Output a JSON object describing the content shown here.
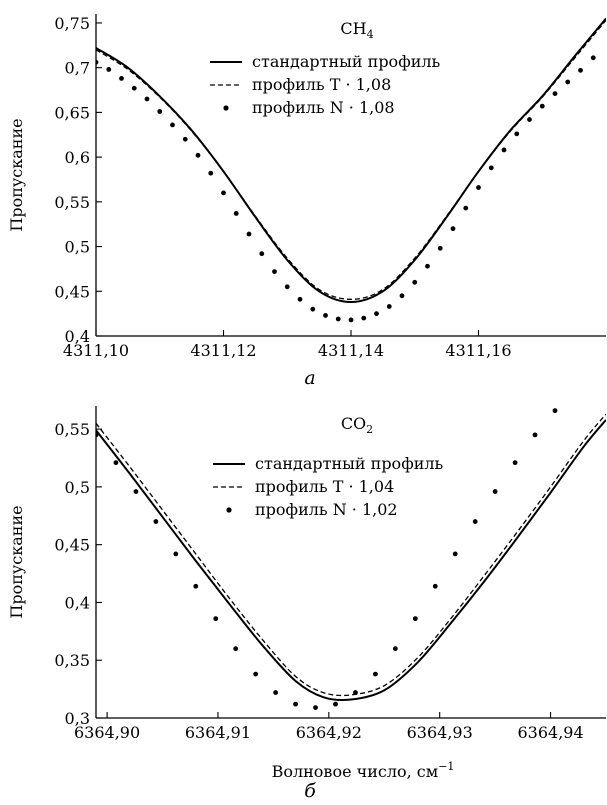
{
  "chart_data": [
    {
      "type": "line",
      "panel_label": "а",
      "title": "CH",
      "title_sub": "4",
      "xlabel": "",
      "ylabel": "Пропускание",
      "xlim": [
        4311.1,
        4311.18
      ],
      "ylim": [
        0.4,
        0.76
      ],
      "x_ticks": [
        4311.1,
        4311.12,
        4311.14,
        4311.16
      ],
      "x_tick_labels": [
        "4311,10",
        "4311,12",
        "4311,14",
        "4311,16"
      ],
      "y_ticks": [
        0.4,
        0.45,
        0.5,
        0.55,
        0.6,
        0.65,
        0.7,
        0.75
      ],
      "y_tick_labels": [
        "0,4",
        "0,45",
        "0,5",
        "0,55",
        "0,6",
        "0,65",
        "0,7",
        "0,75"
      ],
      "legend_position": "top-right",
      "series": [
        {
          "name": "стандартный профиль",
          "style": "solid",
          "x": [
            4311.1,
            4311.105,
            4311.11,
            4311.115,
            4311.12,
            4311.125,
            4311.13,
            4311.135,
            4311.14,
            4311.145,
            4311.15,
            4311.155,
            4311.16,
            4311.165,
            4311.17,
            4311.175,
            4311.18
          ],
          "values": [
            0.722,
            0.7,
            0.668,
            0.63,
            0.584,
            0.533,
            0.485,
            0.45,
            0.438,
            0.45,
            0.485,
            0.533,
            0.584,
            0.63,
            0.668,
            0.712,
            0.755
          ]
        },
        {
          "name": "профиль T · 1,08",
          "style": "dashed",
          "x": [
            4311.1,
            4311.105,
            4311.11,
            4311.115,
            4311.12,
            4311.125,
            4311.13,
            4311.135,
            4311.14,
            4311.145,
            4311.15,
            4311.155,
            4311.16,
            4311.165,
            4311.17,
            4311.175,
            4311.18
          ],
          "values": [
            0.72,
            0.698,
            0.667,
            0.629,
            0.584,
            0.534,
            0.487,
            0.452,
            0.441,
            0.452,
            0.487,
            0.534,
            0.584,
            0.629,
            0.667,
            0.71,
            0.753
          ]
        },
        {
          "name": "профиль N · 1,08",
          "style": "dotted",
          "x": [
            4311.1,
            4311.102,
            4311.104,
            4311.106,
            4311.108,
            4311.11,
            4311.112,
            4311.114,
            4311.116,
            4311.118,
            4311.12,
            4311.122,
            4311.124,
            4311.126,
            4311.128,
            4311.13,
            4311.132,
            4311.134,
            4311.136,
            4311.138,
            4311.14,
            4311.142,
            4311.144,
            4311.146,
            4311.148,
            4311.15,
            4311.152,
            4311.154,
            4311.156,
            4311.158,
            4311.16,
            4311.162,
            4311.164,
            4311.166,
            4311.168,
            4311.17,
            4311.172,
            4311.174,
            4311.176,
            4311.178
          ],
          "values": [
            0.706,
            0.698,
            0.688,
            0.677,
            0.665,
            0.651,
            0.636,
            0.62,
            0.602,
            0.582,
            0.56,
            0.537,
            0.514,
            0.492,
            0.472,
            0.455,
            0.441,
            0.43,
            0.423,
            0.419,
            0.418,
            0.42,
            0.425,
            0.433,
            0.445,
            0.46,
            0.478,
            0.498,
            0.52,
            0.543,
            0.566,
            0.588,
            0.608,
            0.626,
            0.642,
            0.657,
            0.671,
            0.684,
            0.697,
            0.711
          ]
        }
      ]
    },
    {
      "type": "line",
      "panel_label": "б",
      "title": "CO",
      "title_sub": "2",
      "xlabel": "Волновое число, см",
      "xlabel_sup": "−1",
      "ylabel": "Пропускание",
      "xlim": [
        6364.899,
        6364.945
      ],
      "ylim": [
        0.3,
        0.57
      ],
      "x_ticks": [
        6364.9,
        6364.91,
        6364.92,
        6364.93,
        6364.94
      ],
      "x_tick_labels": [
        "6364,90",
        "6364,91",
        "6364,92",
        "6364,93",
        "6364,94"
      ],
      "y_ticks": [
        0.3,
        0.35,
        0.4,
        0.45,
        0.5,
        0.55
      ],
      "y_tick_labels": [
        "0,3",
        "0,35",
        "0,4",
        "0,45",
        "0,5",
        "0,55"
      ],
      "legend_position": "top-center",
      "series": [
        {
          "name": "стандартный профиль",
          "style": "solid",
          "x": [
            6364.899,
            6364.902,
            6364.905,
            6364.908,
            6364.911,
            6364.914,
            6364.917,
            6364.9195,
            6364.922,
            6364.925,
            6364.928,
            6364.931,
            6364.934,
            6364.937,
            6364.94,
            6364.943,
            6364.945
          ],
          "values": [
            0.549,
            0.512,
            0.474,
            0.436,
            0.399,
            0.363,
            0.332,
            0.318,
            0.316,
            0.324,
            0.348,
            0.382,
            0.418,
            0.456,
            0.495,
            0.535,
            0.558
          ]
        },
        {
          "name": "профиль T · 1,04",
          "style": "dashed",
          "x": [
            6364.899,
            6364.902,
            6364.905,
            6364.908,
            6364.911,
            6364.914,
            6364.917,
            6364.9195,
            6364.922,
            6364.925,
            6364.928,
            6364.931,
            6364.934,
            6364.937,
            6364.94,
            6364.943,
            6364.945
          ],
          "values": [
            0.555,
            0.518,
            0.48,
            0.442,
            0.404,
            0.368,
            0.336,
            0.322,
            0.32,
            0.328,
            0.352,
            0.386,
            0.423,
            0.461,
            0.5,
            0.54,
            0.563
          ]
        },
        {
          "name": "профиль N · 1,02",
          "style": "dotted",
          "x": [
            6364.899,
            6364.9008,
            6364.9026,
            6364.9044,
            6364.9062,
            6364.908,
            6364.9098,
            6364.9116,
            6364.9134,
            6364.9152,
            6364.917,
            6364.9188,
            6364.9206,
            6364.9224,
            6364.9242,
            6364.926,
            6364.9278,
            6364.9296,
            6364.9314,
            6364.9332,
            6364.935,
            6364.9368,
            6364.9386,
            6364.9404,
            6364.9422,
            6364.944
          ],
          "values": [
            0.545,
            0.521,
            0.496,
            0.47,
            0.442,
            0.414,
            0.386,
            0.36,
            0.338,
            0.322,
            0.312,
            0.309,
            0.312,
            0.322,
            0.338,
            0.36,
            0.386,
            0.414,
            0.442,
            0.47,
            0.496,
            0.521,
            0.545,
            0.566,
            0.585,
            0.6
          ]
        }
      ]
    }
  ]
}
